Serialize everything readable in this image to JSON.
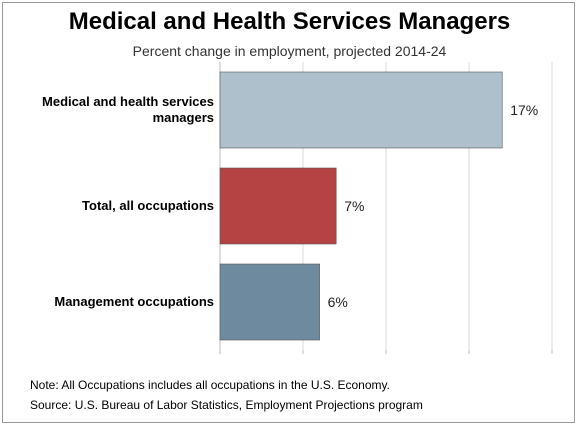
{
  "chart_data": {
    "type": "bar",
    "orientation": "horizontal",
    "title": "Medical and Health Services Managers",
    "subtitle": "Percent change in employment, projected 2014-24",
    "categories": [
      [
        "Medical and health services",
        "managers"
      ],
      [
        "Total, all occupations"
      ],
      [
        "Management occupations"
      ]
    ],
    "values": [
      17,
      7,
      6
    ],
    "data_labels": [
      "17%",
      "7%",
      "6%"
    ],
    "colors": [
      "#adc0cc",
      "#b54344",
      "#6e8a9e"
    ],
    "xlim": [
      0,
      20
    ],
    "grid": true
  },
  "footer": {
    "note": "Note: All Occupations includes all occupations in the U.S. Economy.",
    "source": "Source: U.S. Bureau of Labor Statistics, Employment Projections program"
  }
}
